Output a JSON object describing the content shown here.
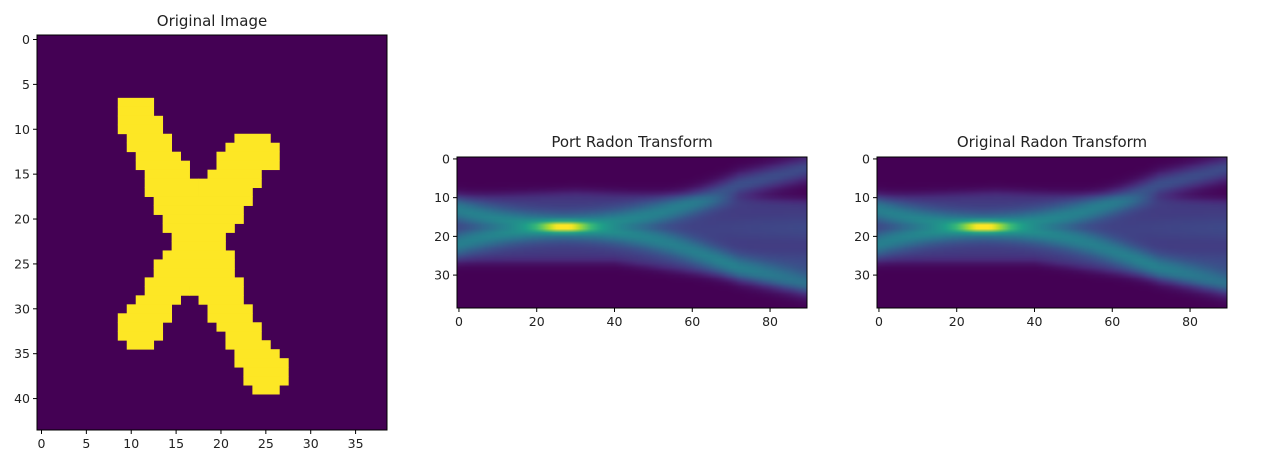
{
  "chart_data": [
    {
      "type": "heatmap",
      "title": "Original Image",
      "xlabel": "",
      "ylabel": "",
      "shape": [
        44,
        39
      ],
      "x_ticks": [
        0,
        5,
        10,
        15,
        20,
        25,
        30,
        35
      ],
      "y_ticks": [
        0,
        5,
        10,
        15,
        20,
        25,
        30,
        35,
        40
      ],
      "colormap": "viridis",
      "value_range": [
        0,
        1
      ],
      "background_color": "#440154",
      "foreground_color": "#fde725",
      "mask_rows": [
        [
          7,
          [
            [
              9,
              12
            ]
          ]
        ],
        [
          8,
          [
            [
              9,
              12
            ]
          ]
        ],
        [
          9,
          [
            [
              9,
              13
            ]
          ]
        ],
        [
          10,
          [
            [
              9,
              13
            ]
          ]
        ],
        [
          11,
          [
            [
              10,
              14
            ],
            [
              22,
              25
            ]
          ]
        ],
        [
          12,
          [
            [
              10,
              14
            ],
            [
              21,
              26
            ]
          ]
        ],
        [
          13,
          [
            [
              11,
              15
            ],
            [
              20,
              26
            ]
          ]
        ],
        [
          14,
          [
            [
              11,
              16
            ],
            [
              20,
              26
            ]
          ]
        ],
        [
          15,
          [
            [
              12,
              16
            ],
            [
              19,
              24
            ]
          ]
        ],
        [
          16,
          [
            [
              12,
              17
            ],
            [
              18,
              24
            ]
          ]
        ],
        [
          17,
          [
            [
              12,
              17
            ],
            [
              18,
              23
            ]
          ]
        ],
        [
          18,
          [
            [
              13,
              23
            ]
          ]
        ],
        [
          19,
          [
            [
              13,
              22
            ]
          ]
        ],
        [
          20,
          [
            [
              14,
              22
            ]
          ]
        ],
        [
          21,
          [
            [
              14,
              21
            ]
          ]
        ],
        [
          22,
          [
            [
              15,
              20
            ]
          ]
        ],
        [
          23,
          [
            [
              15,
              20
            ]
          ]
        ],
        [
          24,
          [
            [
              14,
              21
            ]
          ]
        ],
        [
          25,
          [
            [
              13,
              21
            ]
          ]
        ],
        [
          26,
          [
            [
              13,
              21
            ]
          ]
        ],
        [
          27,
          [
            [
              12,
              22
            ]
          ]
        ],
        [
          28,
          [
            [
              12,
              16
            ],
            [
              17,
              22
            ]
          ]
        ],
        [
          29,
          [
            [
              11,
              15
            ],
            [
              18,
              22
            ]
          ]
        ],
        [
          30,
          [
            [
              10,
              14
            ],
            [
              19,
              23
            ]
          ]
        ],
        [
          31,
          [
            [
              9,
              14
            ],
            [
              19,
              23
            ]
          ]
        ],
        [
          32,
          [
            [
              9,
              13
            ],
            [
              20,
              24
            ]
          ]
        ],
        [
          33,
          [
            [
              9,
              13
            ],
            [
              21,
              24
            ]
          ]
        ],
        [
          34,
          [
            [
              10,
              12
            ],
            [
              21,
              25
            ]
          ]
        ],
        [
          35,
          [
            [
              22,
              26
            ]
          ]
        ],
        [
          36,
          [
            [
              22,
              27
            ]
          ]
        ],
        [
          37,
          [
            [
              23,
              27
            ]
          ]
        ],
        [
          38,
          [
            [
              23,
              27
            ]
          ]
        ],
        [
          39,
          [
            [
              24,
              26
            ]
          ]
        ]
      ]
    },
    {
      "type": "heatmap",
      "title": "Port Radon Transform",
      "xlabel": "",
      "ylabel": "",
      "shape": [
        39,
        90
      ],
      "x_ticks": [
        0,
        20,
        40,
        60,
        80
      ],
      "y_ticks": [
        0,
        10,
        20,
        30
      ],
      "colormap": "viridis",
      "peak": {
        "x": 27,
        "y": 17.5
      }
    },
    {
      "type": "heatmap",
      "title": "Original Radon Transform",
      "xlabel": "",
      "ylabel": "",
      "shape": [
        39,
        90
      ],
      "x_ticks": [
        0,
        20,
        40,
        60,
        80
      ],
      "y_ticks": [
        0,
        10,
        20,
        30
      ],
      "colormap": "viridis",
      "peak": {
        "x": 27,
        "y": 17.5
      }
    }
  ]
}
